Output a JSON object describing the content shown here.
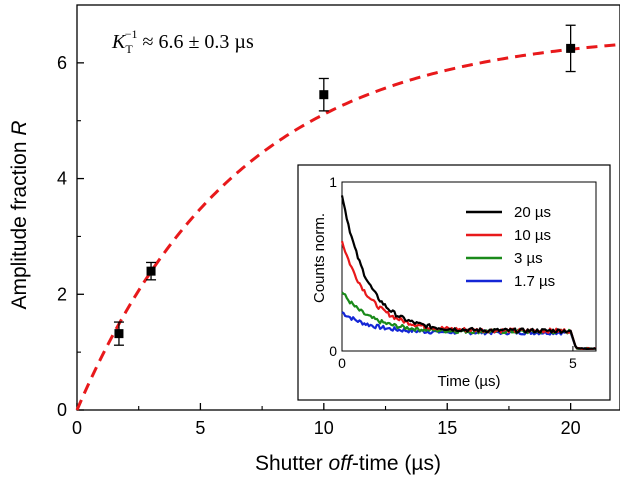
{
  "chart_data": [
    {
      "type": "scatter",
      "xlabel_prefix": "Shutter ",
      "xlabel_italic": "off",
      "xlabel_suffix": "-time (µs)",
      "ylabel_main": "Amplitude fraction ",
      "ylabel_italic": "R",
      "xlim": [
        0,
        22
      ],
      "ylim": [
        0,
        7
      ],
      "x_ticks": [
        0,
        5,
        10,
        15,
        20
      ],
      "y_ticks": [
        0,
        2,
        4,
        6
      ],
      "grid": false,
      "annotation": {
        "symbol": "K",
        "subscript": "T",
        "superscript": "−1",
        "text": " ≈ 6.6 ± 0.3 µs"
      },
      "series": [
        {
          "kind": "points_with_errorbars",
          "color": "#000000",
          "points": [
            {
              "x": 1.7,
              "y": 1.32,
              "err": 0.2
            },
            {
              "x": 3.0,
              "y": 2.4,
              "err": 0.15
            },
            {
              "x": 10.0,
              "y": 5.45,
              "err": 0.28
            },
            {
              "x": 20.0,
              "y": 6.25,
              "err": 0.4
            }
          ]
        },
        {
          "kind": "fit_curve",
          "color": "#e8191b",
          "style": "dashed",
          "model": "A*(1-exp(-x/tau))",
          "A": 6.55,
          "tau": 6.6
        }
      ]
    },
    {
      "type": "line",
      "role": "inset",
      "xlabel": "Time (µs)",
      "ylabel": "Counts norm.",
      "xlim": [
        0,
        5.5
      ],
      "ylim": [
        0,
        1
      ],
      "x_ticks": [
        0,
        5
      ],
      "y_ticks": [
        0,
        1
      ],
      "legend_position": "top-right",
      "series": [
        {
          "name": "20 µs",
          "color": "#000000",
          "start": 0.93,
          "plateau": 0.12,
          "tau": 0.55
        },
        {
          "name": "10 µs",
          "color": "#e8191b",
          "start": 0.65,
          "plateau": 0.12,
          "tau": 0.6
        },
        {
          "name": "3 µs",
          "color": "#1a8a1a",
          "start": 0.35,
          "plateau": 0.115,
          "tau": 0.6
        },
        {
          "name": "1.7 µs",
          "color": "#1426d6",
          "start": 0.23,
          "plateau": 0.11,
          "tau": 0.6
        }
      ],
      "drop_at": 4.95,
      "tail_level": 0.015
    }
  ]
}
